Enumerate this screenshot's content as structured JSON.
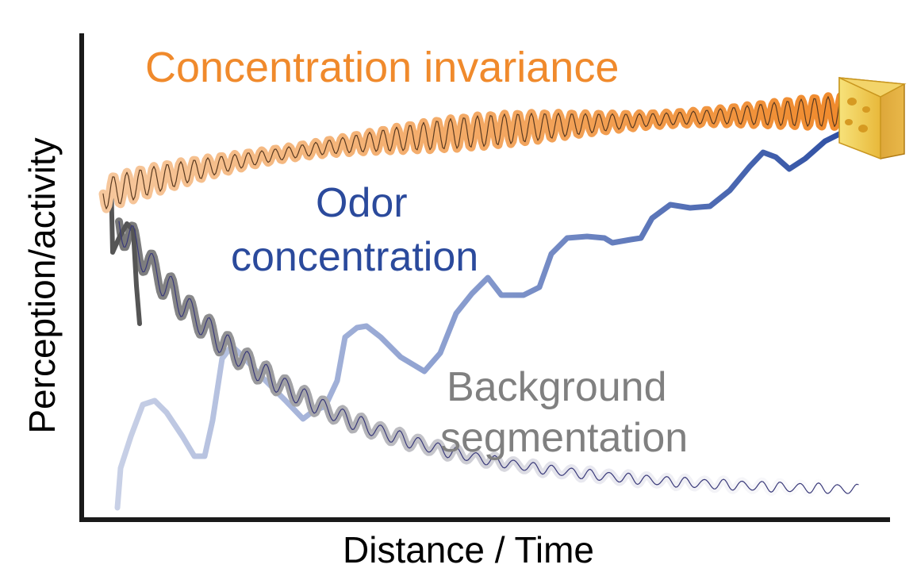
{
  "axes": {
    "y_label": "Perception/activity",
    "x_label": "Distance / Time"
  },
  "curves": {
    "concentration_invariance": {
      "label": "Concentration invariance",
      "color": "#f08a2c"
    },
    "odor_concentration": {
      "label_line1": "Odor",
      "label_line2": "concentration",
      "color": "#2b4a9c"
    },
    "background_segmentation": {
      "label_line1": "Background",
      "label_line2": "segmentation",
      "color": "#808080"
    }
  },
  "icons": {
    "goal": "cheese-icon"
  }
}
